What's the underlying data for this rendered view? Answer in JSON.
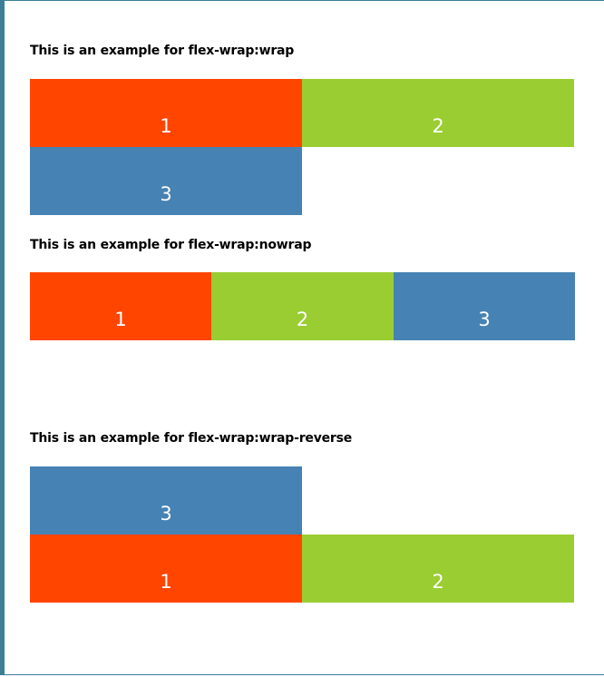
{
  "sections": [
    {
      "heading": "This is an example for flex-wrap:wrap",
      "items": [
        {
          "label": "1",
          "color": "#ff4500"
        },
        {
          "label": "2",
          "color": "#9acd32"
        },
        {
          "label": "3",
          "color": "#4682b4"
        }
      ]
    },
    {
      "heading": "This is an example for flex-wrap:nowrap",
      "items": [
        {
          "label": "1",
          "color": "#ff4500"
        },
        {
          "label": "2",
          "color": "#9acd32"
        },
        {
          "label": "3",
          "color": "#4682b4"
        }
      ]
    },
    {
      "heading": "This is an example for flex-wrap:wrap-reverse",
      "items": [
        {
          "label": "1",
          "color": "#ff4500"
        },
        {
          "label": "2",
          "color": "#9acd32"
        },
        {
          "label": "3",
          "color": "#4682b4"
        }
      ]
    }
  ],
  "frame_border_color": "#3a7f97"
}
